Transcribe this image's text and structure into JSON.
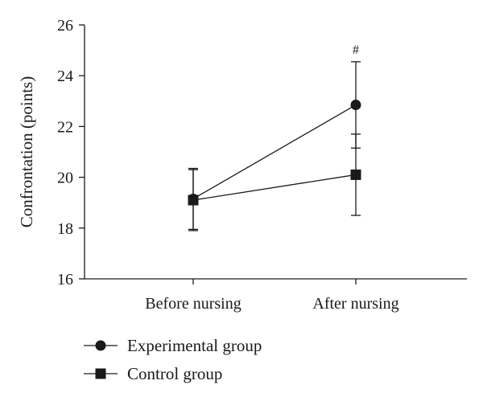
{
  "chart_data": {
    "type": "line",
    "title": "",
    "xlabel": "",
    "ylabel": "Confrontation (points)",
    "categories": [
      "Before nursing",
      "After nursing"
    ],
    "ylim": [
      16,
      26
    ],
    "yticks": [
      16,
      18,
      20,
      22,
      24,
      26
    ],
    "grid": false,
    "legend_position": "bottom-left",
    "series": [
      {
        "name": "Experimental group",
        "marker": "circle",
        "color": "#1a1a1a",
        "values": [
          19.15,
          22.85
        ],
        "error": [
          1.2,
          1.7
        ]
      },
      {
        "name": "Control group",
        "marker": "square",
        "color": "#1a1a1a",
        "values": [
          19.1,
          20.1
        ],
        "error": [
          1.2,
          1.6
        ]
      }
    ],
    "annotations": [
      {
        "text": "#",
        "category": "After nursing",
        "series": "Experimental group"
      }
    ]
  }
}
